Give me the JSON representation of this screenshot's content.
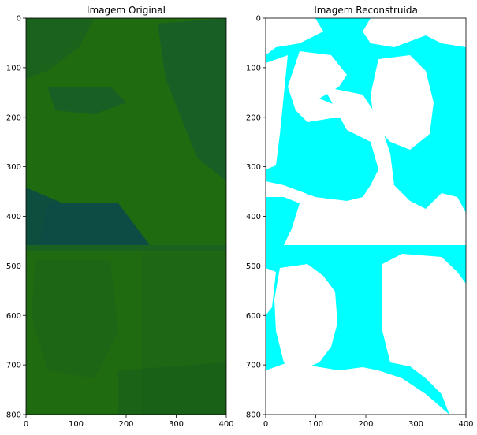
{
  "chart_data": [
    {
      "type": "image",
      "title": "Imagem Original",
      "xlim": [
        0,
        400
      ],
      "ylim": [
        800,
        0
      ],
      "xticks": [
        0,
        100,
        200,
        300,
        400
      ],
      "yticks": [
        0,
        100,
        200,
        300,
        400,
        500,
        600,
        700,
        800
      ],
      "colors": {
        "base": "#1f6b10",
        "dark": "#0d4f3f",
        "tint": "#175c2c"
      }
    },
    {
      "type": "image",
      "title": "Imagem Reconstruída",
      "xlim": [
        0,
        400
      ],
      "ylim": [
        800,
        0
      ],
      "xticks": [
        0,
        100,
        200,
        300,
        400
      ],
      "yticks": [
        0,
        100,
        200,
        300,
        400,
        500,
        600,
        700,
        800
      ],
      "colors": {
        "foreground": "#00ffff",
        "background": "#ffffff"
      }
    }
  ]
}
